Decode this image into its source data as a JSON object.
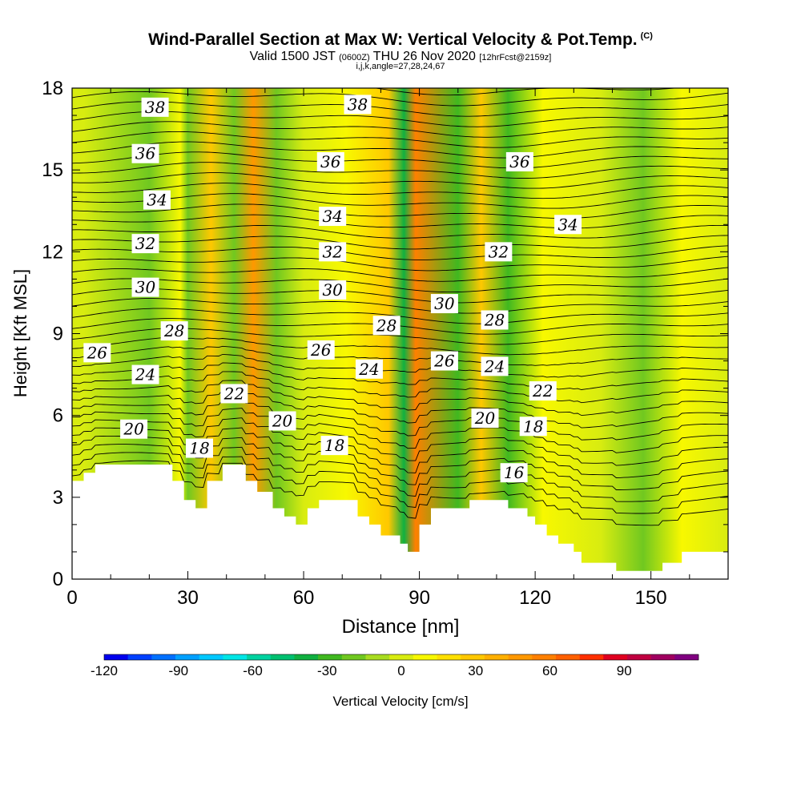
{
  "title": "Wind-Parallel Section at Max W: Vertical Velocity & Pot.Temp.",
  "title_mark": "(C)",
  "subtitle_main": "Valid 1500 JST",
  "subtitle_z": "(0600Z)",
  "subtitle_date": "THU 26 Nov 2020",
  "subtitle_fcst": "[12hrFcst@2159z]",
  "subtitle_line3": "i,j,k,angle=27,28,24,67",
  "chart_data": {
    "type": "heatmap",
    "title": "Wind-Parallel Section at Max W: Vertical Velocity & Pot.Temp.",
    "xlabel": "Distance [nm]",
    "ylabel": "Height [Kft MSL]",
    "xlim": [
      0,
      170
    ],
    "ylim": [
      0,
      18
    ],
    "x_ticks": [
      0,
      30,
      60,
      90,
      120,
      150
    ],
    "y_ticks": [
      0,
      3,
      6,
      9,
      12,
      15,
      18
    ],
    "colorbar": {
      "label": "Vertical Velocity [cm/s]",
      "range": [
        -120,
        120
      ],
      "step": 10,
      "tick_values": [
        -120,
        -90,
        -60,
        -30,
        0,
        30,
        60,
        90
      ],
      "colors": [
        "#0000ee",
        "#0040ff",
        "#0070ff",
        "#00a0ff",
        "#00c8ff",
        "#00e6e6",
        "#00d2a0",
        "#00c070",
        "#10b040",
        "#40b820",
        "#70c820",
        "#a8dc20",
        "#d8ec10",
        "#f8f800",
        "#ffe000",
        "#ffc800",
        "#ffb000",
        "#ff9800",
        "#ff8000",
        "#ff6000",
        "#ff3000",
        "#e00020",
        "#c00040",
        "#a00060",
        "#800080"
      ]
    },
    "vertical_velocity_bands": [
      {
        "x": 3,
        "w": 0
      },
      {
        "x": 20,
        "w": -15
      },
      {
        "x": 28,
        "w": 15
      },
      {
        "x": 30,
        "w": -20
      },
      {
        "x": 36,
        "w": 30
      },
      {
        "x": 42,
        "w": -15
      },
      {
        "x": 47,
        "w": 55
      },
      {
        "x": 53,
        "w": -20
      },
      {
        "x": 60,
        "w": 0
      },
      {
        "x": 71,
        "w": 10
      },
      {
        "x": 82,
        "w": 35
      },
      {
        "x": 86,
        "w": -40
      },
      {
        "x": 89,
        "w": 60
      },
      {
        "x": 100,
        "w": -30
      },
      {
        "x": 106,
        "w": 30
      },
      {
        "x": 113,
        "w": -30
      },
      {
        "x": 122,
        "w": 15
      },
      {
        "x": 137,
        "w": 5
      },
      {
        "x": 148,
        "w": -15
      },
      {
        "x": 158,
        "w": 10
      },
      {
        "x": 170,
        "w": 5
      }
    ],
    "terrain_height": [
      {
        "x": 0,
        "h": 3.6
      },
      {
        "x": 3,
        "h": 3.6
      },
      {
        "x": 3,
        "h": 3.9
      },
      {
        "x": 6,
        "h": 3.9
      },
      {
        "x": 6,
        "h": 4.2
      },
      {
        "x": 26,
        "h": 4.2
      },
      {
        "x": 26,
        "h": 3.6
      },
      {
        "x": 29,
        "h": 3.6
      },
      {
        "x": 29,
        "h": 2.9
      },
      {
        "x": 32,
        "h": 2.9
      },
      {
        "x": 32,
        "h": 2.6
      },
      {
        "x": 35,
        "h": 2.6
      },
      {
        "x": 35,
        "h": 3.6
      },
      {
        "x": 39,
        "h": 3.6
      },
      {
        "x": 39,
        "h": 4.2
      },
      {
        "x": 45,
        "h": 4.2
      },
      {
        "x": 45,
        "h": 3.6
      },
      {
        "x": 48,
        "h": 3.6
      },
      {
        "x": 48,
        "h": 3.2
      },
      {
        "x": 52,
        "h": 3.2
      },
      {
        "x": 52,
        "h": 2.6
      },
      {
        "x": 55,
        "h": 2.6
      },
      {
        "x": 55,
        "h": 2.3
      },
      {
        "x": 58,
        "h": 2.3
      },
      {
        "x": 58,
        "h": 2.0
      },
      {
        "x": 61,
        "h": 2.0
      },
      {
        "x": 61,
        "h": 2.6
      },
      {
        "x": 64,
        "h": 2.6
      },
      {
        "x": 64,
        "h": 2.9
      },
      {
        "x": 74,
        "h": 2.9
      },
      {
        "x": 74,
        "h": 2.3
      },
      {
        "x": 77,
        "h": 2.3
      },
      {
        "x": 77,
        "h": 2.0
      },
      {
        "x": 80,
        "h": 2.0
      },
      {
        "x": 80,
        "h": 1.6
      },
      {
        "x": 85,
        "h": 1.6
      },
      {
        "x": 85,
        "h": 1.3
      },
      {
        "x": 87,
        "h": 1.3
      },
      {
        "x": 87,
        "h": 1.0
      },
      {
        "x": 90,
        "h": 1.0
      },
      {
        "x": 90,
        "h": 2.0
      },
      {
        "x": 93,
        "h": 2.0
      },
      {
        "x": 93,
        "h": 2.6
      },
      {
        "x": 103,
        "h": 2.6
      },
      {
        "x": 103,
        "h": 2.9
      },
      {
        "x": 113,
        "h": 2.9
      },
      {
        "x": 113,
        "h": 2.6
      },
      {
        "x": 118,
        "h": 2.6
      },
      {
        "x": 118,
        "h": 2.3
      },
      {
        "x": 120,
        "h": 2.3
      },
      {
        "x": 120,
        "h": 2.0
      },
      {
        "x": 123,
        "h": 2.0
      },
      {
        "x": 123,
        "h": 1.6
      },
      {
        "x": 126,
        "h": 1.6
      },
      {
        "x": 126,
        "h": 1.3
      },
      {
        "x": 130,
        "h": 1.3
      },
      {
        "x": 130,
        "h": 1.0
      },
      {
        "x": 132,
        "h": 1.0
      },
      {
        "x": 132,
        "h": 0.6
      },
      {
        "x": 141,
        "h": 0.6
      },
      {
        "x": 141,
        "h": 0.3
      },
      {
        "x": 145,
        "h": 0.3
      },
      {
        "x": 145,
        "h": 0.3
      },
      {
        "x": 153,
        "h": 0.3
      },
      {
        "x": 153,
        "h": 0.6
      },
      {
        "x": 158,
        "h": 0.6
      },
      {
        "x": 158,
        "h": 1.0
      },
      {
        "x": 170,
        "h": 1.0
      }
    ],
    "isentrope_labels": [
      {
        "text": "38",
        "x": 21.5,
        "y": 17.3
      },
      {
        "text": "38",
        "x": 74,
        "y": 17.4
      },
      {
        "text": "36",
        "x": 19,
        "y": 15.6
      },
      {
        "text": "36",
        "x": 67,
        "y": 15.3
      },
      {
        "text": "36",
        "x": 116,
        "y": 15.3
      },
      {
        "text": "34",
        "x": 22,
        "y": 13.9
      },
      {
        "text": "34",
        "x": 67.5,
        "y": 13.3
      },
      {
        "text": "34",
        "x": 128.5,
        "y": 13.0
      },
      {
        "text": "32",
        "x": 19,
        "y": 12.3
      },
      {
        "text": "32",
        "x": 67.5,
        "y": 12.0
      },
      {
        "text": "32",
        "x": 110.5,
        "y": 12.0
      },
      {
        "text": "30",
        "x": 19,
        "y": 10.7
      },
      {
        "text": "30",
        "x": 67.5,
        "y": 10.6
      },
      {
        "text": "30",
        "x": 96.5,
        "y": 10.1
      },
      {
        "text": "28",
        "x": 26.5,
        "y": 9.1
      },
      {
        "text": "28",
        "x": 81.5,
        "y": 9.3
      },
      {
        "text": "28",
        "x": 109.5,
        "y": 9.5
      },
      {
        "text": "26",
        "x": 6.5,
        "y": 8.3
      },
      {
        "text": "26",
        "x": 64.5,
        "y": 8.4
      },
      {
        "text": "26",
        "x": 96.5,
        "y": 8.0
      },
      {
        "text": "24",
        "x": 19,
        "y": 7.5
      },
      {
        "text": "24",
        "x": 77,
        "y": 7.7
      },
      {
        "text": "24",
        "x": 109.5,
        "y": 7.8
      },
      {
        "text": "22",
        "x": 42,
        "y": 6.8
      },
      {
        "text": "22",
        "x": 122,
        "y": 6.9
      },
      {
        "text": "20",
        "x": 16,
        "y": 5.5
      },
      {
        "text": "20",
        "x": 54.5,
        "y": 5.8
      },
      {
        "text": "20",
        "x": 107,
        "y": 5.9
      },
      {
        "text": "18",
        "x": 33,
        "y": 4.8
      },
      {
        "text": "18",
        "x": 68,
        "y": 4.9
      },
      {
        "text": "18",
        "x": 119.5,
        "y": 5.6
      },
      {
        "text": "16",
        "x": 114.5,
        "y": 3.9
      }
    ]
  }
}
